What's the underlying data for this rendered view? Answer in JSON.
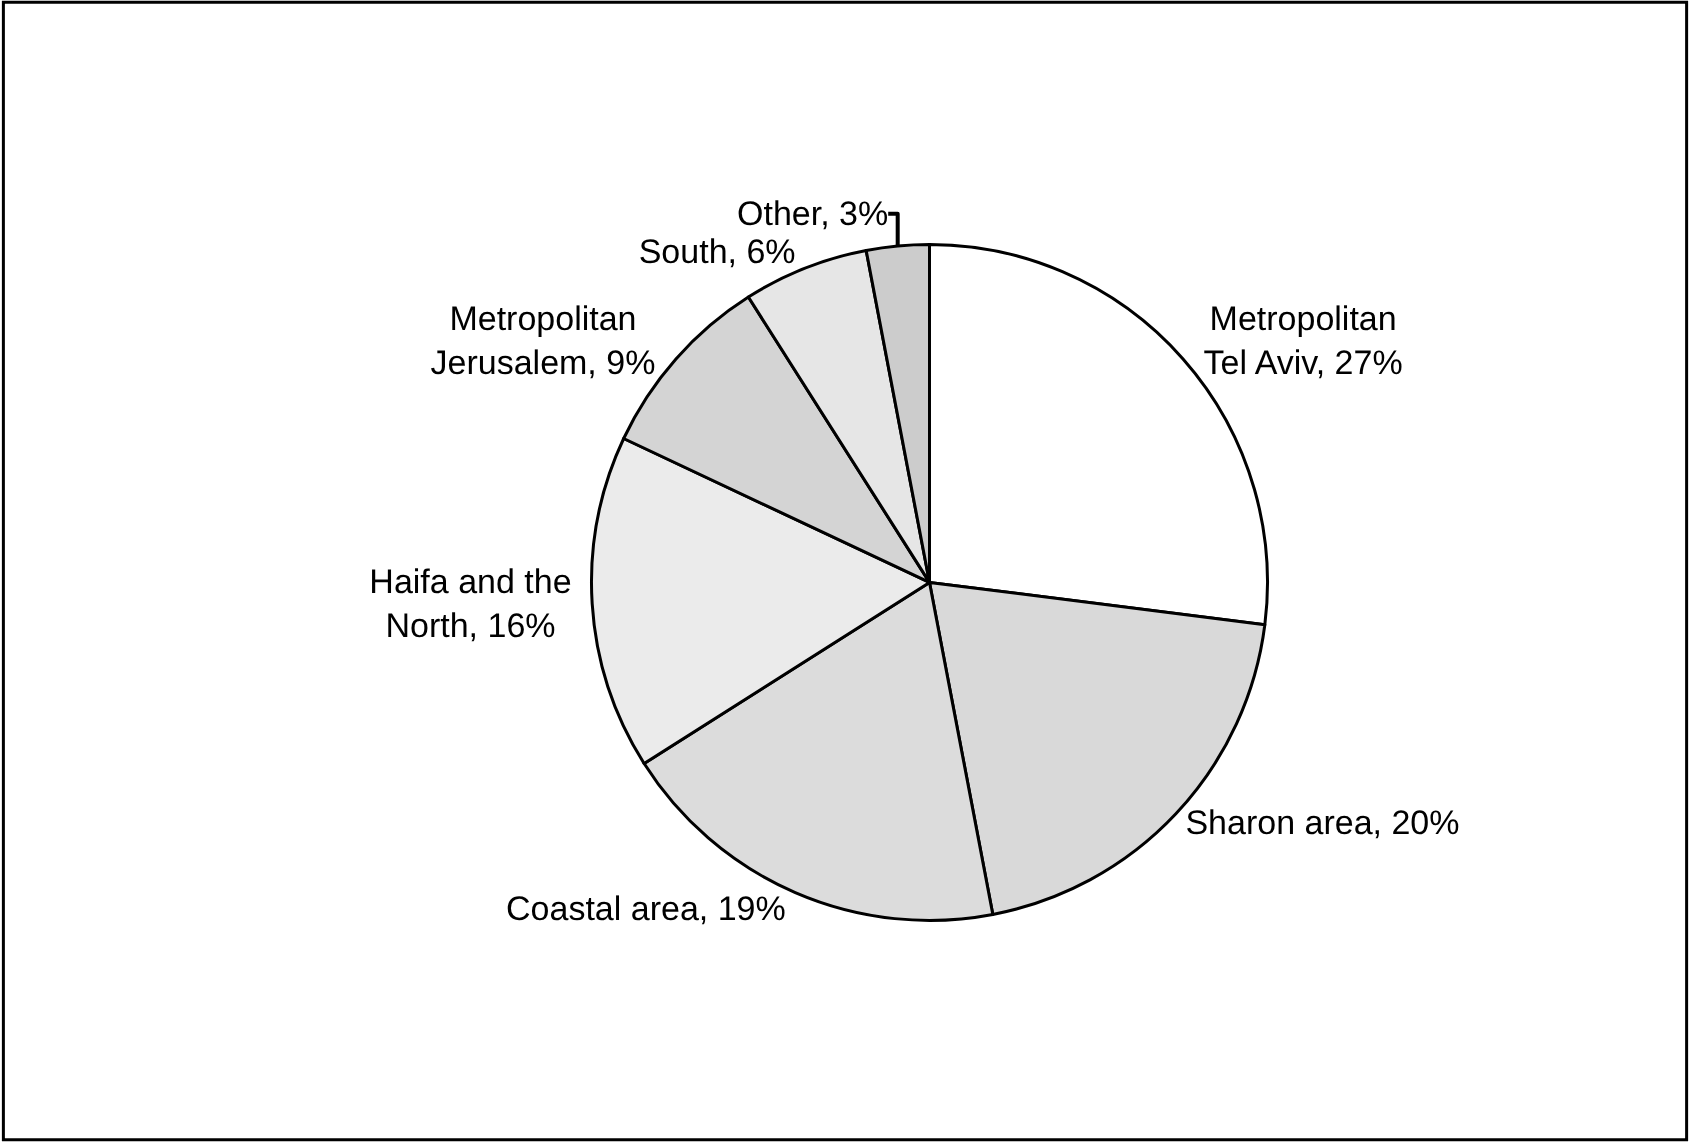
{
  "chart_data": {
    "type": "pie",
    "categories": [
      "Metropolitan Tel Aviv",
      "Sharon area",
      "Coastal area",
      "Haifa and the North",
      "Metropolitan Jerusalem",
      "South",
      "Other"
    ],
    "values": [
      27,
      20,
      19,
      16,
      9,
      6,
      3
    ],
    "value_labels": [
      "27%",
      "20%",
      "19%",
      "16%",
      "9%",
      "6%",
      "3%"
    ],
    "colors": [
      "#ffffff",
      "#d9d9d9",
      "#dcdcdc",
      "#ebebeb",
      "#d4d4d4",
      "#e6e6e6",
      "#cccccc"
    ],
    "legend": false
  }
}
